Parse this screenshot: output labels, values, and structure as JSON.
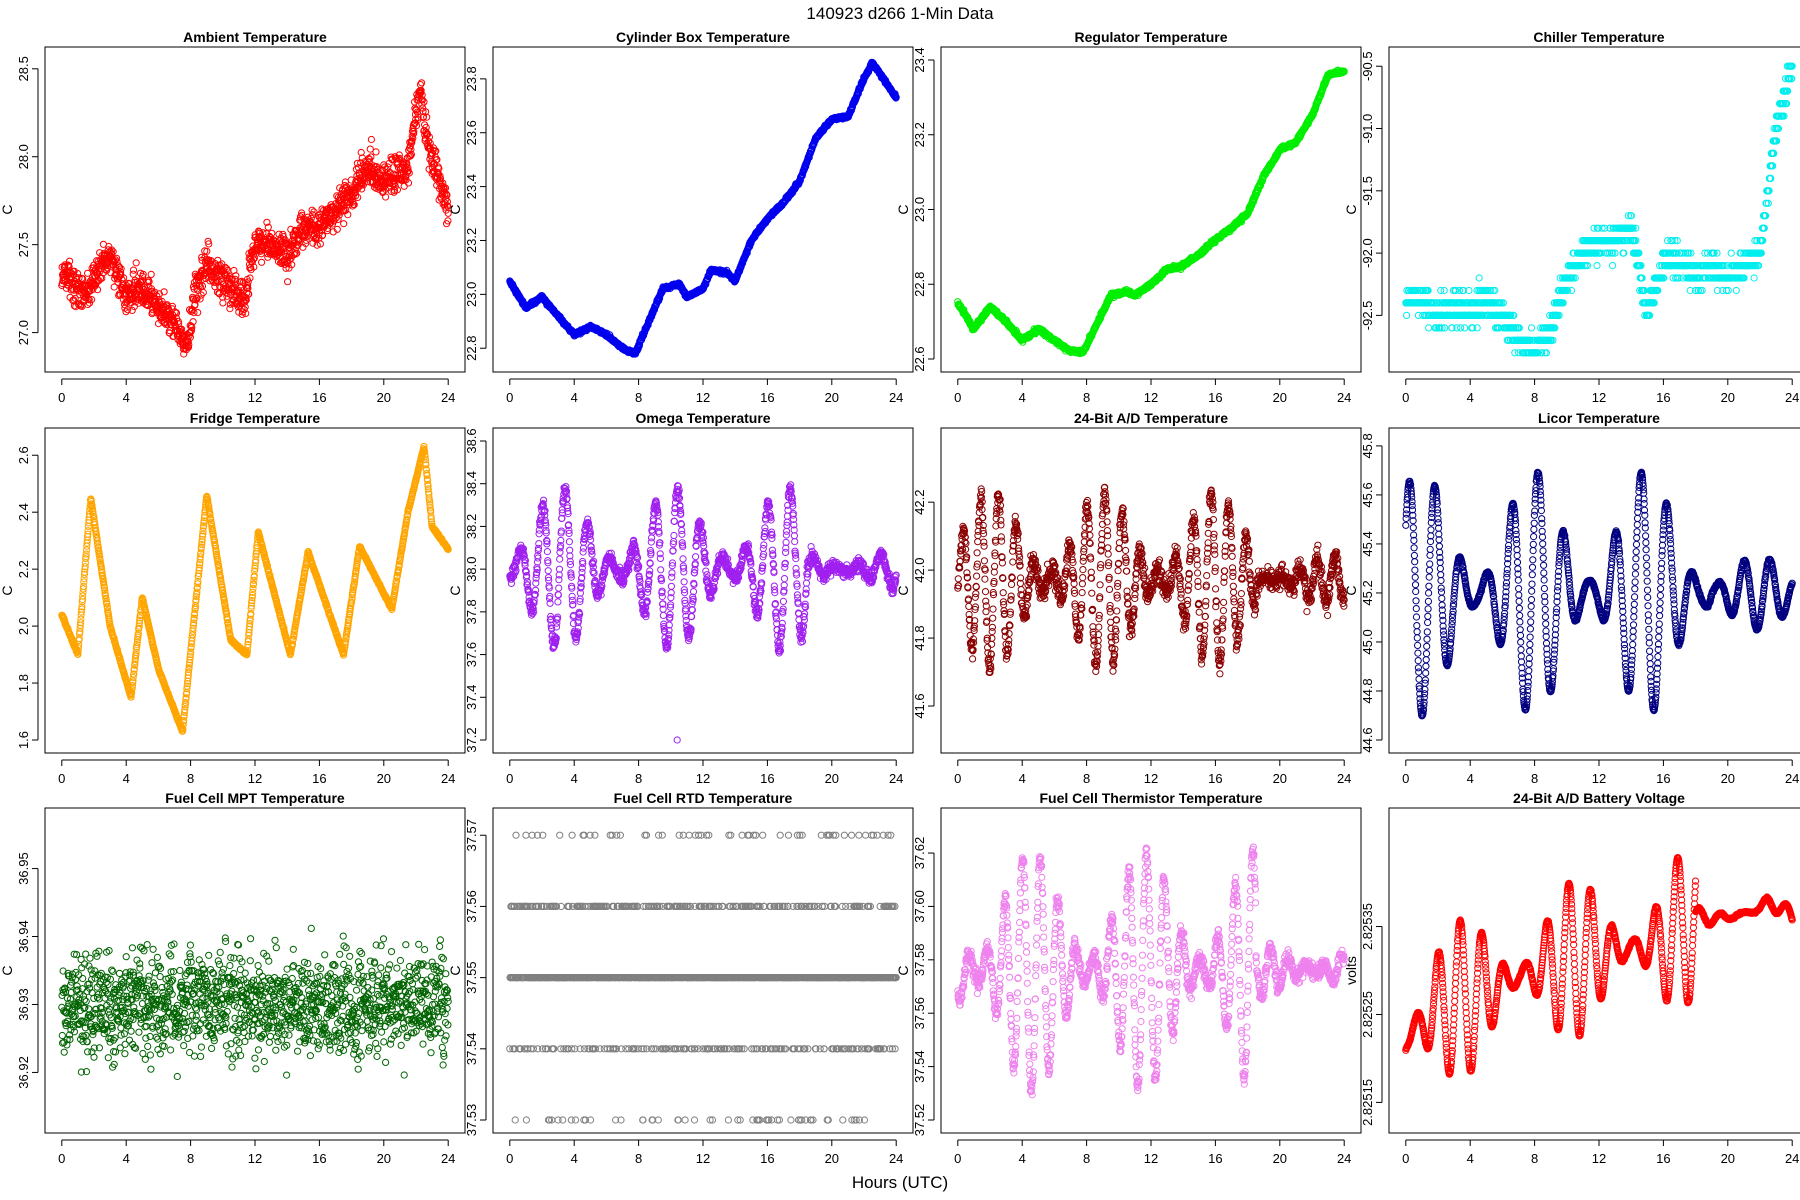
{
  "figure": {
    "suptitle": "140923    d266    1-Min Data",
    "xlabel": "Hours (UTC)"
  },
  "chart_data": [
    {
      "type": "scatter",
      "title": "Ambient Temperature",
      "ylabel": "C",
      "color": "#ff0000",
      "xlim": [
        0,
        24
      ],
      "xticks": [
        "0",
        "4",
        "8",
        "12",
        "16",
        "20",
        "24"
      ],
      "ylim": [
        26.85,
        28.55
      ],
      "yticks": [
        {
          "v": 27.0,
          "label": "27.0"
        },
        {
          "v": 27.5,
          "label": "27.5"
        },
        {
          "v": 28.0,
          "label": "28.0"
        },
        {
          "v": 28.5,
          "label": "28.5"
        }
      ],
      "series": {
        "x": [
          0,
          1.5,
          2.5,
          3,
          4,
          5,
          6,
          7,
          7.8,
          8.2,
          9,
          10,
          11,
          11.5,
          12,
          13,
          14,
          15,
          16,
          17,
          18,
          19,
          20,
          21,
          21.5,
          22,
          22.3,
          22.5,
          23,
          23.5,
          24
        ],
        "y": [
          27.35,
          27.2,
          27.4,
          27.45,
          27.2,
          27.25,
          27.15,
          27.05,
          26.9,
          27.2,
          27.4,
          27.3,
          27.2,
          27.25,
          27.5,
          27.5,
          27.45,
          27.6,
          27.6,
          27.7,
          27.8,
          27.95,
          27.85,
          27.9,
          27.95,
          28.25,
          28.4,
          28.2,
          28.0,
          27.85,
          27.7
        ]
      },
      "noise": 0.1,
      "n": 1440
    },
    {
      "type": "scatter",
      "title": "Cylinder Box Temperature",
      "ylabel": "C",
      "color": "#0000ee",
      "xlim": [
        0,
        24
      ],
      "xticks": [
        "0",
        "4",
        "8",
        "12",
        "16",
        "20",
        "24"
      ],
      "ylim": [
        22.76,
        23.87
      ],
      "yticks": [
        {
          "v": 22.8,
          "label": "22.8"
        },
        {
          "v": 23.0,
          "label": "23.0"
        },
        {
          "v": 23.2,
          "label": "23.2"
        },
        {
          "v": 23.4,
          "label": "23.4"
        },
        {
          "v": 23.6,
          "label": "23.6"
        },
        {
          "v": 23.8,
          "label": "23.8"
        }
      ],
      "series": {
        "x": [
          0,
          1,
          2,
          3,
          4,
          5,
          6,
          7,
          7.8,
          8.5,
          9.5,
          10.5,
          11,
          12,
          12.5,
          13.5,
          14,
          15,
          16,
          17,
          18,
          19,
          20,
          21,
          22,
          22.5,
          23,
          24
        ],
        "y": [
          23.05,
          22.95,
          22.99,
          22.92,
          22.85,
          22.88,
          22.85,
          22.8,
          22.78,
          22.88,
          23.02,
          23.04,
          22.99,
          23.02,
          23.09,
          23.08,
          23.05,
          23.2,
          23.28,
          23.34,
          23.42,
          23.58,
          23.65,
          23.66,
          23.8,
          23.86,
          23.82,
          23.73
        ]
      },
      "noise": 0.006,
      "n": 1440
    },
    {
      "type": "scatter",
      "title": "Regulator Temperature",
      "ylabel": "C",
      "color": "#00ee00",
      "xlim": [
        0,
        24
      ],
      "xticks": [
        "0",
        "4",
        "8",
        "12",
        "16",
        "20",
        "24"
      ],
      "ylim": [
        22.6,
        23.4
      ],
      "yticks": [
        {
          "v": 22.6,
          "label": "22.6"
        },
        {
          "v": 22.8,
          "label": "22.8"
        },
        {
          "v": 23.0,
          "label": "23.0"
        },
        {
          "v": 23.2,
          "label": "23.2"
        },
        {
          "v": 23.4,
          "label": "23.4"
        }
      ],
      "series": {
        "x": [
          0,
          1,
          2,
          3,
          4,
          5,
          6,
          7,
          7.8,
          8.5,
          9.5,
          10.5,
          11,
          12,
          13,
          14,
          15,
          16,
          17,
          18,
          19,
          20,
          21,
          22,
          23,
          24
        ],
        "y": [
          22.75,
          22.68,
          22.74,
          22.7,
          22.65,
          22.68,
          22.65,
          22.62,
          22.62,
          22.68,
          22.77,
          22.78,
          22.77,
          22.8,
          22.84,
          22.85,
          22.88,
          22.92,
          22.95,
          22.99,
          23.09,
          23.16,
          23.18,
          23.25,
          23.36,
          23.37
        ]
      },
      "noise": 0.005,
      "n": 1440
    },
    {
      "type": "scatter",
      "title": "Chiller Temperature",
      "ylabel": "C",
      "color": "#00eeee",
      "xlim": [
        0,
        24
      ],
      "xticks": [
        "0",
        "4",
        "8",
        "12",
        "16",
        "20",
        "24"
      ],
      "ylim": [
        -92.85,
        -90.45
      ],
      "yticks": [
        {
          "v": -92.5,
          "label": "-92.5"
        },
        {
          "v": -92.0,
          "label": "-92.0"
        },
        {
          "v": -91.5,
          "label": "-91.5"
        },
        {
          "v": -91.0,
          "label": "-91.0"
        },
        {
          "v": -90.5,
          "label": "-90.5"
        }
      ],
      "series": {
        "x": [
          0,
          1,
          2,
          3,
          4,
          5,
          6,
          7,
          8,
          9,
          10,
          11,
          12,
          13,
          14,
          15,
          16,
          17,
          18,
          19,
          20,
          21,
          22,
          22.5,
          23,
          24
        ],
        "y": [
          -92.35,
          -92.4,
          -92.5,
          -92.45,
          -92.45,
          -92.4,
          -92.5,
          -92.7,
          -92.8,
          -92.6,
          -92.2,
          -92.0,
          -91.9,
          -91.9,
          -91.8,
          -92.5,
          -92.1,
          -92.05,
          -92.2,
          -92.1,
          -92.2,
          -92.1,
          -92.0,
          -91.5,
          -91.0,
          -90.5
        ]
      },
      "noise": 0.12,
      "step": 0.1,
      "n": 1440
    },
    {
      "type": "scatter",
      "title": "Fridge Temperature",
      "ylabel": "C",
      "color": "#ffa500",
      "xlim": [
        0,
        24
      ],
      "xticks": [
        "0",
        "4",
        "8",
        "12",
        "16",
        "20",
        "24"
      ],
      "ylim": [
        1.6,
        2.65
      ],
      "yticks": [
        {
          "v": 1.6,
          "label": "1.6"
        },
        {
          "v": 1.8,
          "label": "1.8"
        },
        {
          "v": 2.0,
          "label": "2.0"
        },
        {
          "v": 2.2,
          "label": "2.2"
        },
        {
          "v": 2.4,
          "label": "2.4"
        },
        {
          "v": 2.6,
          "label": "2.6"
        }
      ],
      "series": {
        "x": [
          0,
          1,
          1.8,
          3,
          4.3,
          5,
          6,
          7.5,
          9,
          10.5,
          11.5,
          12.2,
          14.2,
          15.3,
          17.5,
          18.5,
          20.5,
          21.5,
          22.5,
          23,
          24
        ],
        "y": [
          2.04,
          1.9,
          2.45,
          2.0,
          1.75,
          2.1,
          1.85,
          1.63,
          2.46,
          1.95,
          1.9,
          2.33,
          1.9,
          2.26,
          1.9,
          2.28,
          2.06,
          2.4,
          2.63,
          2.35,
          2.27
        ]
      },
      "noise": 0.004,
      "n": 1440
    },
    {
      "type": "scatter",
      "title": "Omega Temperature",
      "ylabel": "C",
      "color": "#a020f0",
      "xlim": [
        0,
        24
      ],
      "xticks": [
        "0",
        "4",
        "8",
        "12",
        "16",
        "20",
        "24"
      ],
      "ylim": [
        37.2,
        38.6
      ],
      "yticks": [
        {
          "v": 37.2,
          "label": "37.2"
        },
        {
          "v": 37.4,
          "label": "37.4"
        },
        {
          "v": 37.6,
          "label": "37.6"
        },
        {
          "v": 37.8,
          "label": "37.8"
        },
        {
          "v": 38.0,
          "label": "38.0"
        },
        {
          "v": 38.2,
          "label": "38.2"
        },
        {
          "v": 38.4,
          "label": "38.4"
        },
        {
          "v": 38.6,
          "label": "38.6"
        }
      ],
      "series": {
        "x": [
          0,
          24
        ],
        "y": [
          38.0,
          38.0
        ]
      },
      "osc": {
        "amp": 0.38,
        "period": 1.4,
        "calm_after": 18.5,
        "calm_amp": 0.09
      },
      "noise": 0.03,
      "n": 1440,
      "extra_points": [
        {
          "x": 10.4,
          "y": 37.2
        }
      ]
    },
    {
      "type": "scatter",
      "title": "24-Bit A/D Temperature",
      "ylabel": "C",
      "color": "#8b0000",
      "xlim": [
        0,
        24
      ],
      "xticks": [
        "0",
        "4",
        "8",
        "12",
        "16",
        "20",
        "24"
      ],
      "ylim": [
        41.5,
        42.38
      ],
      "yticks": [
        {
          "v": 41.6,
          "label": "41.6"
        },
        {
          "v": 41.8,
          "label": "41.8"
        },
        {
          "v": 42.0,
          "label": "42.0"
        },
        {
          "v": 42.2,
          "label": "42.2"
        }
      ],
      "series": {
        "x": [
          0,
          24
        ],
        "y": [
          41.97,
          41.97
        ]
      },
      "osc": {
        "amp": 0.26,
        "period": 1.1,
        "calm_after": 18.5,
        "calm_amp": 0.07
      },
      "noise": 0.03,
      "n": 1440
    },
    {
      "type": "scatter",
      "title": "Licor Temperature",
      "ylabel": "C",
      "color": "#000080",
      "xlim": [
        0,
        24
      ],
      "xticks": [
        "0",
        "4",
        "8",
        "12",
        "16",
        "20",
        "24"
      ],
      "ylim": [
        44.6,
        45.82
      ],
      "yticks": [
        {
          "v": 44.6,
          "label": "44.6"
        },
        {
          "v": 44.8,
          "label": "44.8"
        },
        {
          "v": 45.0,
          "label": "45.0"
        },
        {
          "v": 45.2,
          "label": "45.2"
        },
        {
          "v": 45.4,
          "label": "45.4"
        },
        {
          "v": 45.6,
          "label": "45.6"
        },
        {
          "v": 45.8,
          "label": "45.8"
        }
      ],
      "series": {
        "x": [
          0,
          24
        ],
        "y": [
          45.2,
          45.2
        ]
      },
      "osc": {
        "amp": 0.5,
        "period": 1.6,
        "calm_after": 19.0,
        "calm_amp": 0.15
      },
      "noise": 0.005,
      "n": 1440
    },
    {
      "type": "scatter",
      "title": "Fuel Cell MPT Temperature",
      "ylabel": "C",
      "color": "#006400",
      "xlim": [
        0,
        24
      ],
      "xticks": [
        "0",
        "4",
        "8",
        "12",
        "16",
        "20",
        "24"
      ],
      "ylim": [
        36.913,
        36.957
      ],
      "yticks": [
        {
          "v": 36.92,
          "label": "36.92"
        },
        {
          "v": 36.93,
          "label": "36.93"
        },
        {
          "v": 36.94,
          "label": "36.94"
        },
        {
          "v": 36.95,
          "label": "36.95"
        }
      ],
      "series": {
        "x": [
          0,
          24
        ],
        "y": [
          36.93,
          36.93
        ]
      },
      "noise": 0.0075,
      "n": 1440
    },
    {
      "type": "scatter",
      "title": "Fuel Cell RTD Temperature",
      "ylabel": "C",
      "color": "#808080",
      "xlim": [
        0,
        24
      ],
      "xticks": [
        "0",
        "4",
        "8",
        "12",
        "16",
        "20",
        "24"
      ],
      "ylim": [
        37.53,
        37.572
      ],
      "yticks": [
        {
          "v": 37.53,
          "label": "37.53"
        },
        {
          "v": 37.54,
          "label": "37.54"
        },
        {
          "v": 37.55,
          "label": "37.55"
        },
        {
          "v": 37.56,
          "label": "37.56"
        },
        {
          "v": 37.57,
          "label": "37.57"
        }
      ],
      "series": {
        "x": [
          0,
          24
        ],
        "y": [
          37.55,
          37.55
        ]
      },
      "levels": [
        37.53,
        37.54,
        37.55,
        37.56,
        37.57
      ],
      "noise": 0.0,
      "n": 1440
    },
    {
      "type": "scatter",
      "title": "Fuel Cell Thermistor Temperature",
      "ylabel": "C",
      "color": "#ee82ee",
      "xlim": [
        0,
        24
      ],
      "xticks": [
        "0",
        "4",
        "8",
        "12",
        "16",
        "20",
        "24"
      ],
      "ylim": [
        37.52,
        37.632
      ],
      "yticks": [
        {
          "v": 37.52,
          "label": "37.52"
        },
        {
          "v": 37.54,
          "label": "37.54"
        },
        {
          "v": 37.56,
          "label": "37.56"
        },
        {
          "v": 37.58,
          "label": "37.58"
        },
        {
          "v": 37.6,
          "label": "37.60"
        },
        {
          "v": 37.62,
          "label": "37.62"
        }
      ],
      "series": {
        "x": [
          0,
          24
        ],
        "y": [
          37.576,
          37.576
        ]
      },
      "osc": {
        "amp": 0.045,
        "period": 1.1,
        "calm_after": 18.5,
        "calm_amp": 0.01
      },
      "noise": 0.003,
      "n": 1440
    },
    {
      "type": "scatter",
      "title": "24-Bit A/D Battery Voltage",
      "ylabel": "volts",
      "color": "#ff0000",
      "xlim": [
        0,
        24
      ],
      "xticks": [
        "0",
        "4",
        "8",
        "12",
        "16",
        "20",
        "24"
      ],
      "ylim": [
        2.82513,
        2.82547
      ],
      "yticks": [
        {
          "v": 2.82515,
          "label": "2.82515"
        },
        {
          "v": 2.82525,
          "label": "2.82525"
        },
        {
          "v": 2.82535,
          "label": "2.82535"
        }
      ],
      "series": {
        "x": [
          0,
          2,
          4,
          8,
          12,
          16,
          18,
          20,
          22,
          22.5,
          24
        ],
        "y": [
          2.82522,
          2.82526,
          2.82527,
          2.8253,
          2.82532,
          2.82533,
          2.82536,
          2.82536,
          2.82537,
          2.82538,
          2.82536
        ]
      },
      "osc": {
        "amp": 9e-05,
        "period": 1.35,
        "calm_after": 18.0,
        "calm_amp": 1.2e-05
      },
      "noise": 1e-06,
      "n": 1440
    }
  ]
}
